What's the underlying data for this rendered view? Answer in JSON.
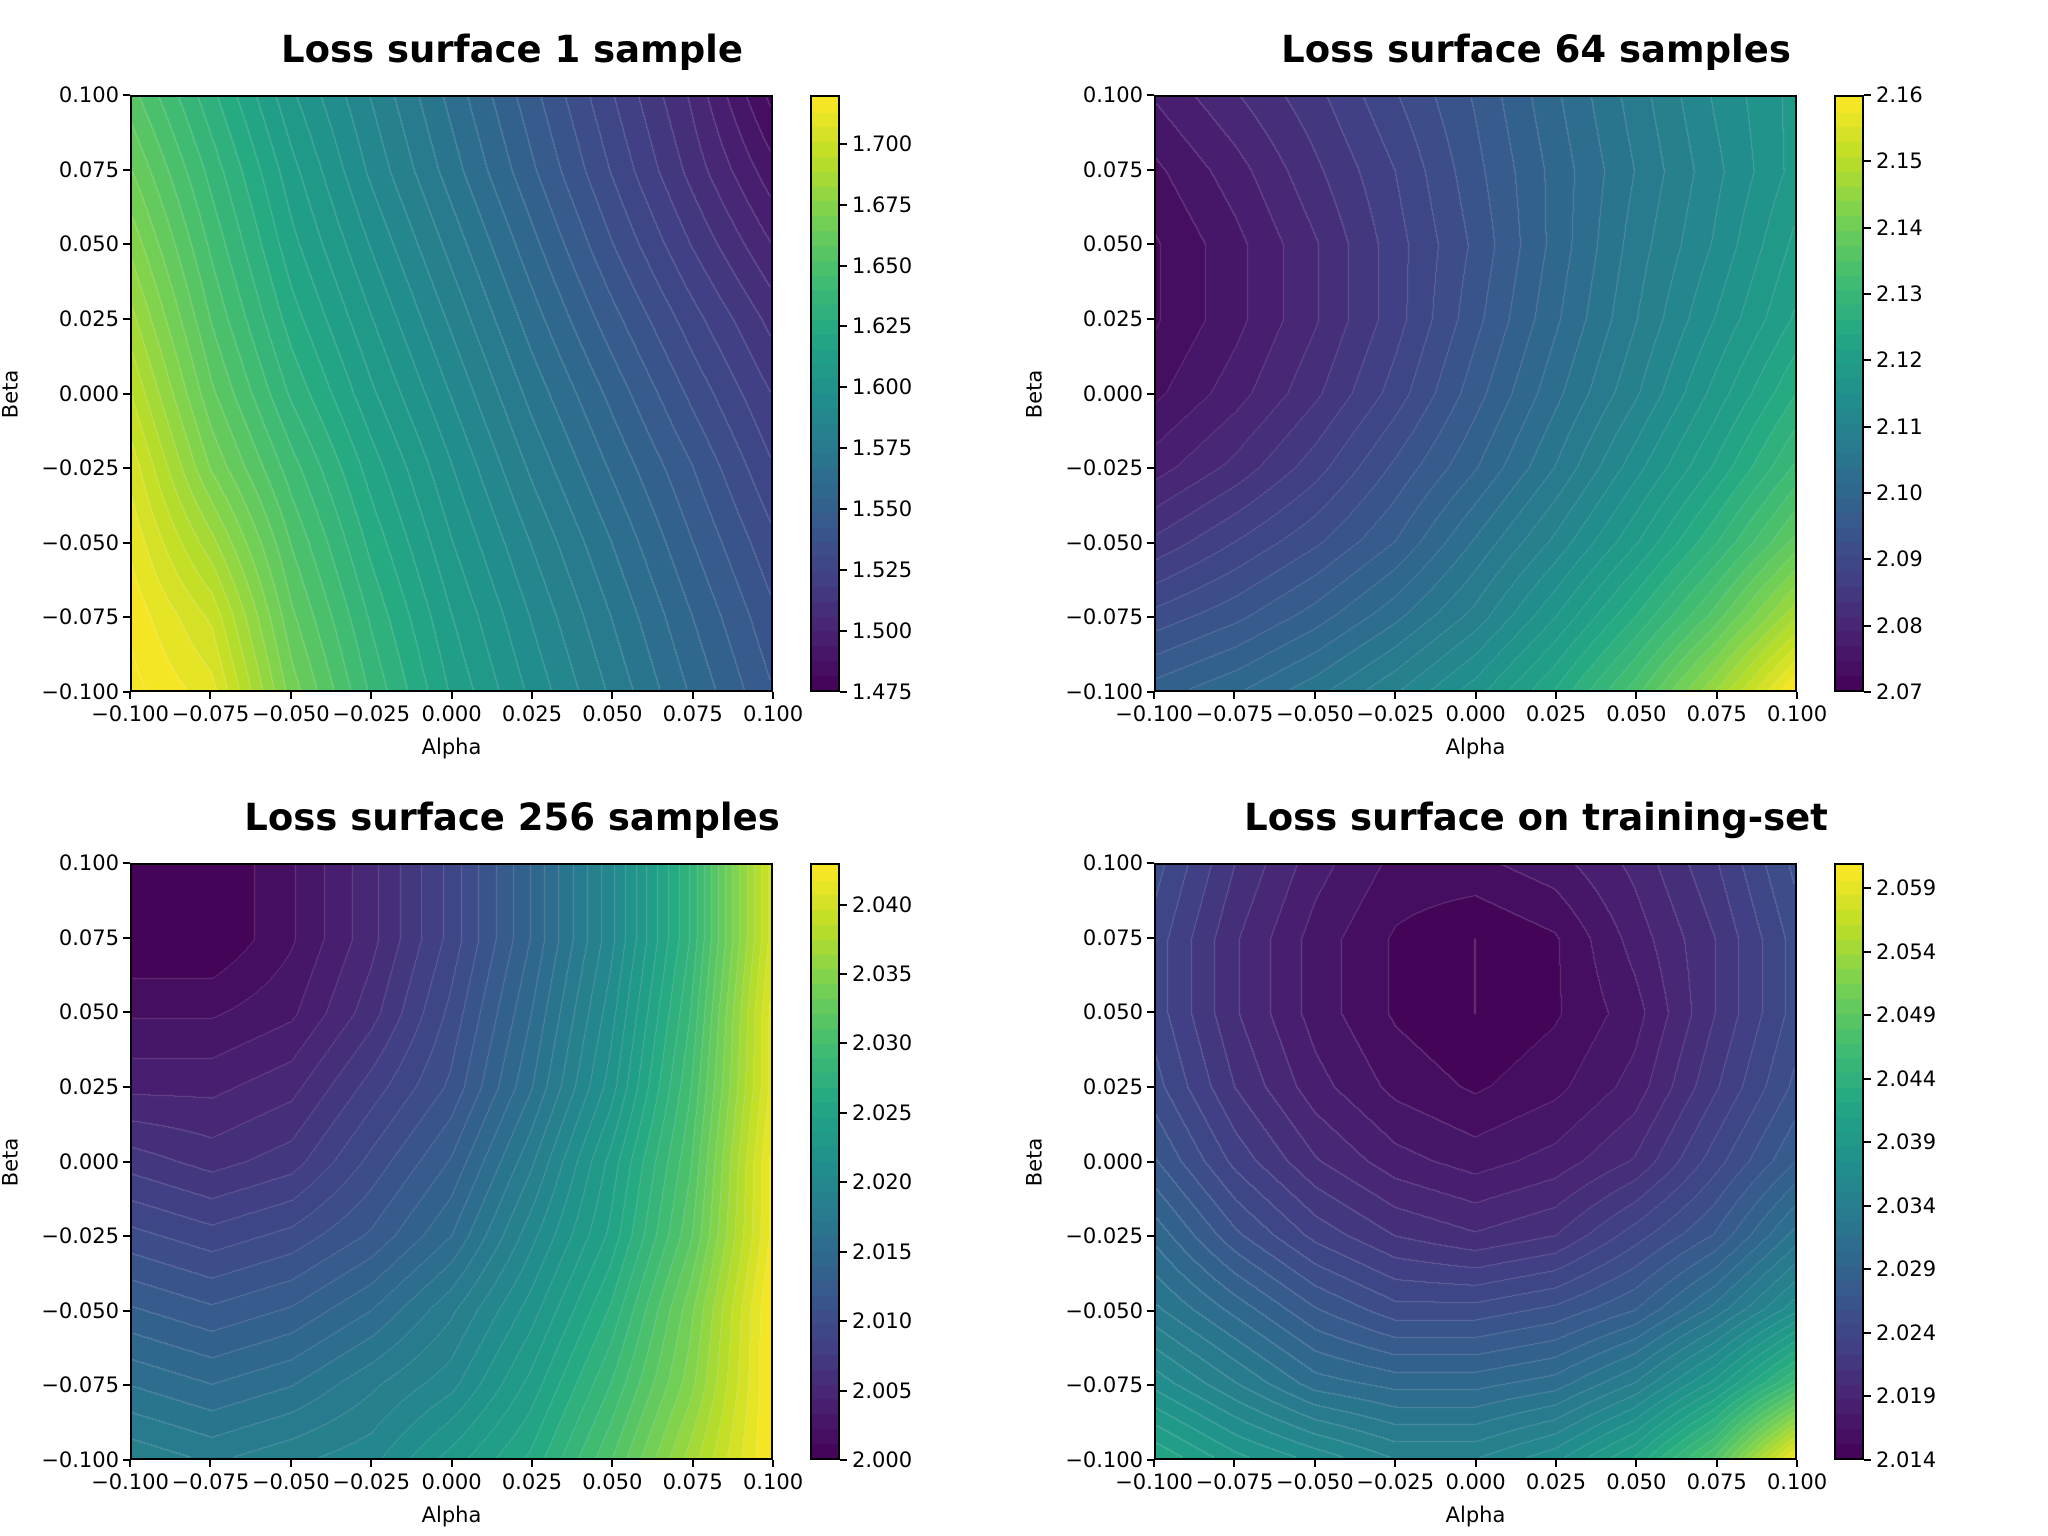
{
  "chart_data": [
    {
      "type": "contour",
      "title": "Loss surface 1 sample",
      "xlabel": "Alpha",
      "ylabel": "Beta",
      "xlim": [
        -0.1,
        0.1
      ],
      "ylim": [
        -0.1,
        0.1
      ],
      "x_ticks": [
        "−0.100",
        "−0.075",
        "−0.050",
        "−0.025",
        "0.000",
        "0.025",
        "0.050",
        "0.075",
        "0.100"
      ],
      "y_ticks": [
        "−0.100",
        "−0.075",
        "−0.050",
        "−0.025",
        "0.000",
        "0.025",
        "0.050",
        "0.075",
        "0.100"
      ],
      "colormap": "viridis",
      "colorbar_range": [
        1.475,
        1.72
      ],
      "colorbar_ticks": [
        1.475,
        1.5,
        1.525,
        1.55,
        1.575,
        1.6,
        1.625,
        1.65,
        1.675,
        1.7
      ],
      "colorbar_tick_labels": [
        "1.475",
        "1.500",
        "1.525",
        "1.550",
        "1.575",
        "1.600",
        "1.625",
        "1.650",
        "1.675",
        "1.700"
      ],
      "grid": {
        "alpha": [
          -0.1,
          -0.075,
          -0.05,
          -0.025,
          0.0,
          0.025,
          0.05,
          0.075,
          0.1
        ],
        "beta": [
          0.1,
          0.075,
          0.05,
          0.025,
          0.0,
          -0.025,
          -0.05,
          -0.075,
          -0.1
        ],
        "loss": [
          [
            1.655,
            1.63,
            1.605,
            1.585,
            1.565,
            1.545,
            1.525,
            1.505,
            1.48
          ],
          [
            1.665,
            1.638,
            1.612,
            1.59,
            1.57,
            1.55,
            1.53,
            1.51,
            1.49
          ],
          [
            1.675,
            1.645,
            1.618,
            1.597,
            1.577,
            1.557,
            1.537,
            1.518,
            1.5
          ],
          [
            1.685,
            1.652,
            1.625,
            1.604,
            1.584,
            1.564,
            1.545,
            1.527,
            1.51
          ],
          [
            1.695,
            1.66,
            1.633,
            1.611,
            1.591,
            1.571,
            1.553,
            1.535,
            1.518
          ],
          [
            1.705,
            1.67,
            1.643,
            1.619,
            1.598,
            1.578,
            1.56,
            1.543,
            1.525
          ],
          [
            1.712,
            1.685,
            1.652,
            1.626,
            1.604,
            1.585,
            1.567,
            1.549,
            1.532
          ],
          [
            1.718,
            1.7,
            1.66,
            1.633,
            1.61,
            1.591,
            1.573,
            1.555,
            1.538
          ],
          [
            1.722,
            1.71,
            1.668,
            1.639,
            1.615,
            1.596,
            1.578,
            1.56,
            1.543
          ]
        ]
      }
    },
    {
      "type": "contour",
      "title": "Loss surface 64 samples",
      "xlabel": "Alpha",
      "ylabel": "Beta",
      "xlim": [
        -0.1,
        0.1
      ],
      "ylim": [
        -0.1,
        0.1
      ],
      "x_ticks": [
        "−0.100",
        "−0.075",
        "−0.050",
        "−0.025",
        "0.000",
        "0.025",
        "0.050",
        "0.075",
        "0.100"
      ],
      "y_ticks": [
        "−0.100",
        "−0.075",
        "−0.050",
        "−0.025",
        "0.000",
        "0.025",
        "0.050",
        "0.075",
        "0.100"
      ],
      "colormap": "viridis",
      "colorbar_range": [
        2.07,
        2.16
      ],
      "colorbar_ticks": [
        2.07,
        2.08,
        2.09,
        2.1,
        2.11,
        2.12,
        2.13,
        2.14,
        2.15,
        2.16
      ],
      "colorbar_tick_labels": [
        "2.07",
        "2.08",
        "2.09",
        "2.10",
        "2.11",
        "2.12",
        "2.13",
        "2.14",
        "2.15",
        "2.16"
      ],
      "grid": {
        "alpha": [
          -0.1,
          -0.075,
          -0.05,
          -0.025,
          0.0,
          0.025,
          0.05,
          0.075,
          0.1
        ],
        "beta": [
          0.1,
          0.075,
          0.05,
          0.025,
          0.0,
          -0.025,
          -0.05,
          -0.075,
          -0.1
        ],
        "loss": [
          [
            2.077,
            2.081,
            2.085,
            2.09,
            2.095,
            2.101,
            2.107,
            2.113,
            2.118
          ],
          [
            2.074,
            2.078,
            2.083,
            2.088,
            2.094,
            2.1,
            2.106,
            2.112,
            2.118
          ],
          [
            2.072,
            2.076,
            2.081,
            2.087,
            2.093,
            2.1,
            2.107,
            2.113,
            2.12
          ],
          [
            2.072,
            2.076,
            2.081,
            2.087,
            2.094,
            2.101,
            2.108,
            2.115,
            2.122
          ],
          [
            2.074,
            2.078,
            2.083,
            2.089,
            2.096,
            2.103,
            2.11,
            2.118,
            2.126
          ],
          [
            2.078,
            2.082,
            2.087,
            2.093,
            2.099,
            2.106,
            2.114,
            2.122,
            2.131
          ],
          [
            2.084,
            2.088,
            2.092,
            2.097,
            2.104,
            2.111,
            2.119,
            2.128,
            2.138
          ],
          [
            2.091,
            2.094,
            2.098,
            2.103,
            2.109,
            2.117,
            2.126,
            2.136,
            2.148
          ],
          [
            2.098,
            2.101,
            2.105,
            2.11,
            2.116,
            2.124,
            2.134,
            2.146,
            2.16
          ]
        ]
      }
    },
    {
      "type": "contour",
      "title": "Loss surface 256 samples",
      "xlabel": "Alpha",
      "ylabel": "Beta",
      "xlim": [
        -0.1,
        0.1
      ],
      "ylim": [
        -0.1,
        0.1
      ],
      "x_ticks": [
        "−0.100",
        "−0.075",
        "−0.050",
        "−0.025",
        "0.000",
        "0.025",
        "0.050",
        "0.075",
        "0.100"
      ],
      "y_ticks": [
        "−0.100",
        "−0.075",
        "−0.050",
        "−0.025",
        "0.000",
        "0.025",
        "0.050",
        "0.075",
        "0.100"
      ],
      "colormap": "viridis",
      "colorbar_range": [
        2.0,
        2.043
      ],
      "colorbar_ticks": [
        2.0,
        2.005,
        2.01,
        2.015,
        2.02,
        2.025,
        2.03,
        2.035,
        2.04
      ],
      "colorbar_tick_labels": [
        "2.000",
        "2.005",
        "2.010",
        "2.015",
        "2.020",
        "2.025",
        "2.030",
        "2.035",
        "2.040"
      ],
      "grid": {
        "alpha": [
          -0.1,
          -0.075,
          -0.05,
          -0.025,
          0.0,
          0.025,
          0.05,
          0.075,
          0.1
        ],
        "beta": [
          0.1,
          0.075,
          0.05,
          0.025,
          0.0,
          -0.025,
          -0.05,
          -0.075,
          -0.1
        ],
        "loss": [
          [
            2.0,
            2.0,
            2.002,
            2.005,
            2.009,
            2.014,
            2.02,
            2.028,
            2.04
          ],
          [
            2.0,
            2.0,
            2.002,
            2.005,
            2.009,
            2.014,
            2.02,
            2.028,
            2.04
          ],
          [
            2.002,
            2.002,
            2.003,
            2.006,
            2.01,
            2.015,
            2.021,
            2.029,
            2.041
          ],
          [
            2.004,
            2.004,
            2.005,
            2.008,
            2.011,
            2.016,
            2.022,
            2.03,
            2.041
          ],
          [
            2.007,
            2.006,
            2.007,
            2.01,
            2.013,
            2.018,
            2.024,
            2.031,
            2.042
          ],
          [
            2.01,
            2.009,
            2.01,
            2.012,
            2.015,
            2.02,
            2.025,
            2.032,
            2.042
          ],
          [
            2.013,
            2.012,
            2.013,
            2.015,
            2.018,
            2.022,
            2.027,
            2.034,
            2.043
          ],
          [
            2.016,
            2.015,
            2.016,
            2.018,
            2.02,
            2.024,
            2.029,
            2.035,
            2.043
          ],
          [
            2.019,
            2.018,
            2.019,
            2.02,
            2.023,
            2.026,
            2.031,
            2.037,
            2.043
          ]
        ]
      }
    },
    {
      "type": "contour",
      "title": "Loss surface on training-set",
      "xlabel": "Alpha",
      "ylabel": "Beta",
      "xlim": [
        -0.1,
        0.1
      ],
      "ylim": [
        -0.1,
        0.1
      ],
      "x_ticks": [
        "−0.100",
        "−0.075",
        "−0.050",
        "−0.025",
        "0.000",
        "0.025",
        "0.050",
        "0.075",
        "0.100"
      ],
      "y_ticks": [
        "−0.100",
        "−0.075",
        "−0.050",
        "−0.025",
        "0.000",
        "0.025",
        "0.050",
        "0.075",
        "0.100"
      ],
      "colormap": "viridis",
      "colorbar_range": [
        2.014,
        2.061
      ],
      "colorbar_ticks": [
        2.014,
        2.019,
        2.024,
        2.029,
        2.034,
        2.039,
        2.044,
        2.049,
        2.054,
        2.059
      ],
      "colorbar_tick_labels": [
        "2.014",
        "2.019",
        "2.024",
        "2.029",
        "2.034",
        "2.039",
        "2.044",
        "2.049",
        "2.054",
        "2.059"
      ],
      "grid": {
        "alpha": [
          -0.1,
          -0.075,
          -0.05,
          -0.025,
          0.0,
          0.025,
          0.05,
          0.075,
          0.1
        ],
        "beta": [
          0.1,
          0.075,
          0.05,
          0.025,
          0.0,
          -0.025,
          -0.05,
          -0.075,
          -0.1
        ],
        "loss": [
          [
            2.025,
            2.021,
            2.018,
            2.016,
            2.016,
            2.017,
            2.019,
            2.022,
            2.026
          ],
          [
            2.024,
            2.02,
            2.017,
            2.015,
            2.014,
            2.015,
            2.018,
            2.021,
            2.025
          ],
          [
            2.024,
            2.02,
            2.017,
            2.015,
            2.014,
            2.015,
            2.017,
            2.021,
            2.025
          ],
          [
            2.025,
            2.021,
            2.018,
            2.016,
            2.015,
            2.016,
            2.018,
            2.022,
            2.026
          ],
          [
            2.027,
            2.023,
            2.02,
            2.018,
            2.017,
            2.018,
            2.02,
            2.024,
            2.028
          ],
          [
            2.03,
            2.026,
            2.023,
            2.021,
            2.02,
            2.021,
            2.024,
            2.027,
            2.032
          ],
          [
            2.033,
            2.03,
            2.027,
            2.025,
            2.025,
            2.026,
            2.028,
            2.032,
            2.037
          ],
          [
            2.037,
            2.034,
            2.031,
            2.03,
            2.03,
            2.031,
            2.034,
            2.039,
            2.046
          ],
          [
            2.042,
            2.039,
            2.037,
            2.035,
            2.035,
            2.037,
            2.041,
            2.048,
            2.06
          ]
        ]
      }
    }
  ]
}
